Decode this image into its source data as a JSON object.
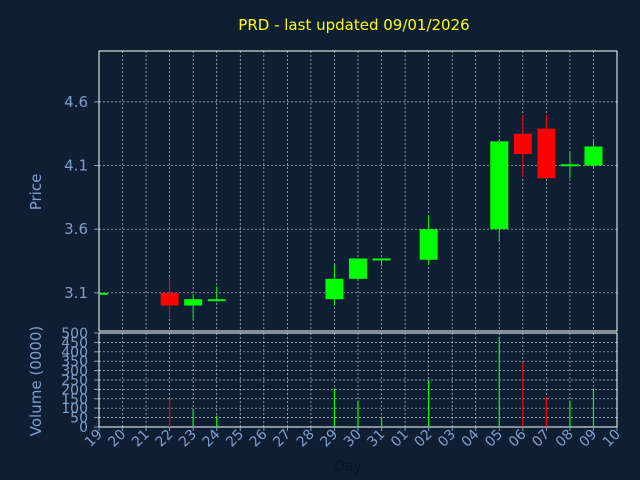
{
  "chart_data": [
    {
      "type": "candlestick",
      "title": "PRD - last updated 09/01/2026",
      "ylabel": "Price",
      "xlabel": "Day",
      "ylim": [
        2.8,
        5.0
      ],
      "yticks": [
        3.1,
        3.6,
        4.1,
        4.6
      ],
      "ytick_labels": [
        "3.1",
        "3.6",
        "4.1",
        "4.6"
      ],
      "grid": true,
      "colors": {
        "up": "#00ff00",
        "down": "#ff0000",
        "background": "#0f1f33",
        "plot_border": "#ffffff",
        "text": "#7f9fc8",
        "title": "#ffff00"
      },
      "x_labels": [
        "19",
        "20",
        "21",
        "22",
        "23",
        "24",
        "25",
        "26",
        "27",
        "28",
        "29",
        "30",
        "31",
        "01",
        "02",
        "03",
        "04",
        "05",
        "06",
        "07",
        "08",
        "09",
        "10"
      ],
      "candles": [
        {
          "day": "19",
          "open": 3.1,
          "close": 3.1,
          "high": 3.1,
          "low": 3.1
        },
        {
          "day": "22",
          "open": 3.1,
          "close": 3.0,
          "high": 3.22,
          "low": 2.9
        },
        {
          "day": "23",
          "open": 3.0,
          "close": 3.05,
          "high": 3.09,
          "low": 2.88
        },
        {
          "day": "24",
          "open": 3.04,
          "close": 3.05,
          "high": 3.15,
          "low": 3.03
        },
        {
          "day": "29",
          "open": 3.05,
          "close": 3.21,
          "high": 3.32,
          "low": 3.0
        },
        {
          "day": "30",
          "open": 3.21,
          "close": 3.37,
          "high": 3.37,
          "low": 3.2
        },
        {
          "day": "31",
          "open": 3.36,
          "close": 3.37,
          "high": 3.37,
          "low": 3.31
        },
        {
          "day": "02",
          "open": 3.36,
          "close": 3.6,
          "high": 3.71,
          "low": 3.32
        },
        {
          "day": "05",
          "open": 3.6,
          "close": 4.29,
          "high": 4.29,
          "low": 3.5
        },
        {
          "day": "06",
          "open": 4.35,
          "close": 4.19,
          "high": 4.5,
          "low": 4.01
        },
        {
          "day": "07",
          "open": 4.39,
          "close": 4.0,
          "high": 4.5,
          "low": 4.0
        },
        {
          "day": "08",
          "open": 4.1,
          "close": 4.11,
          "high": 4.2,
          "low": 4.0
        },
        {
          "day": "09",
          "open": 4.1,
          "close": 4.25,
          "high": 4.3,
          "low": 4.08
        }
      ]
    },
    {
      "type": "bar",
      "ylabel": "Volume (0000)",
      "ylim": [
        0,
        500
      ],
      "yticks": [
        0,
        50,
        100,
        150,
        200,
        250,
        300,
        350,
        400,
        450,
        500
      ],
      "ytick_labels": [
        "0",
        "50",
        "100",
        "150",
        "200",
        "250",
        "300",
        "350",
        "400",
        "450",
        "500"
      ],
      "bars": [
        {
          "day": "22",
          "value": 150,
          "direction": "down"
        },
        {
          "day": "23",
          "value": 95,
          "direction": "up"
        },
        {
          "day": "24",
          "value": 60,
          "direction": "up"
        },
        {
          "day": "29",
          "value": 205,
          "direction": "up"
        },
        {
          "day": "30",
          "value": 140,
          "direction": "up"
        },
        {
          "day": "31",
          "value": 50,
          "direction": "up"
        },
        {
          "day": "02",
          "value": 250,
          "direction": "up"
        },
        {
          "day": "05",
          "value": 480,
          "direction": "up"
        },
        {
          "day": "06",
          "value": 345,
          "direction": "down"
        },
        {
          "day": "07",
          "value": 160,
          "direction": "down"
        },
        {
          "day": "08",
          "value": 140,
          "direction": "up"
        },
        {
          "day": "09",
          "value": 205,
          "direction": "up"
        }
      ]
    }
  ]
}
